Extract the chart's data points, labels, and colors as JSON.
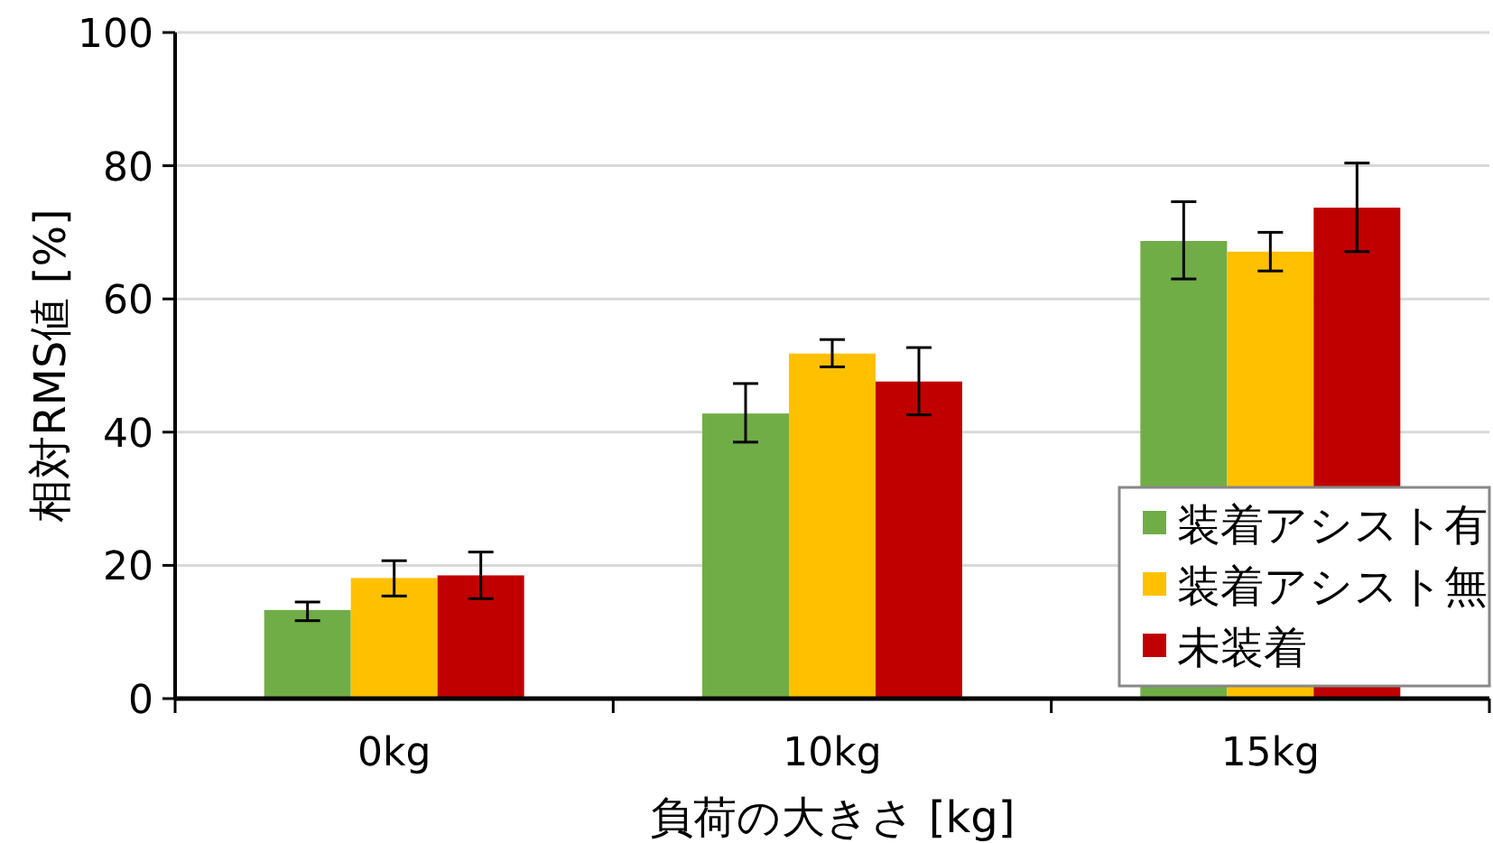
{
  "chart_data": {
    "type": "bar",
    "xlabel": "負荷の大きさ [kg]",
    "ylabel": "相対RMS値 [%]",
    "categories": [
      "0kg",
      "10kg",
      "15kg"
    ],
    "series": [
      {
        "name": "装着アシスト有",
        "color": "#70ad47",
        "values": [
          13.3,
          42.8,
          68.7
        ],
        "errors": [
          [
            11.7,
            14.5
          ],
          [
            38.5,
            47.3
          ],
          [
            63.0,
            74.6
          ]
        ]
      },
      {
        "name": "装着アシスト無",
        "color": "#ffc000",
        "values": [
          18.1,
          51.8,
          67.1
        ],
        "errors": [
          [
            15.4,
            20.7
          ],
          [
            49.8,
            53.9
          ],
          [
            64.2,
            70.0
          ]
        ]
      },
      {
        "name": "未装着",
        "color": "#c00000",
        "values": [
          18.5,
          47.6,
          73.7
        ],
        "errors": [
          [
            15.0,
            22.0
          ],
          [
            42.6,
            52.7
          ],
          [
            67.1,
            80.4
          ]
        ]
      }
    ],
    "ylim": [
      0,
      100
    ],
    "yticks": [
      0,
      20,
      40,
      60,
      80,
      100
    ],
    "grid": "y",
    "legend": "bottom right"
  }
}
